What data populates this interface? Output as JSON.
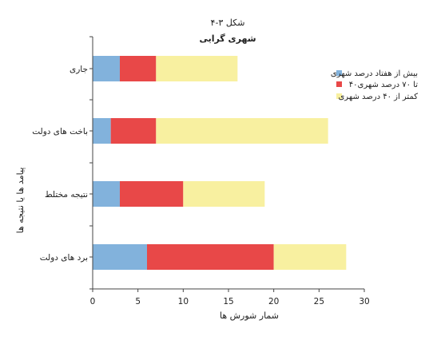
{
  "chart_data": {
    "type": "bar",
    "orientation": "horizontal",
    "stacked": true,
    "title": "شکل ۳-۴",
    "subtitle": "شهری گرایی",
    "xlabel": "شمار شورش ها",
    "ylabel": "پیامد ها یا نتیجه ها",
    "xlim": [
      0,
      30
    ],
    "xticks": [
      0,
      5,
      10,
      15,
      20,
      25,
      30
    ],
    "grid": false,
    "legend_position": "right",
    "categories": [
      "جاری",
      "باخت های دولت",
      "نتیجه مختلط",
      "برد های دولت"
    ],
    "series": [
      {
        "name": "بیش از هفتاد درصد شهری",
        "color": "#82b2dc",
        "values": [
          3,
          2,
          3,
          6
        ]
      },
      {
        "name": "۴۰تا ۷۰ درصد شهری",
        "color": "#e84848",
        "values": [
          4,
          5,
          7,
          14
        ]
      },
      {
        "name": "کمتر از ۴۰ درصد شهری",
        "color": "#f8f0a0",
        "values": [
          9,
          19,
          9,
          8
        ]
      }
    ]
  }
}
